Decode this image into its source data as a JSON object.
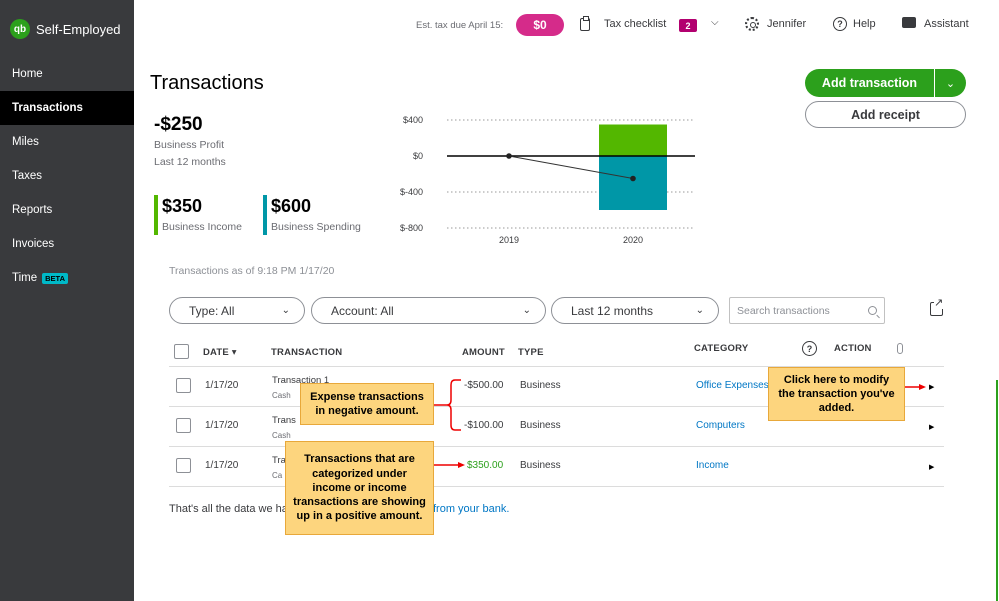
{
  "app": {
    "name": "Self-Employed",
    "logo_text": "qb"
  },
  "sidebar": {
    "items": [
      {
        "label": "Home"
      },
      {
        "label": "Transactions",
        "active": true
      },
      {
        "label": "Miles"
      },
      {
        "label": "Taxes"
      },
      {
        "label": "Reports"
      },
      {
        "label": "Invoices"
      },
      {
        "label": "Time",
        "badge": "BETA"
      }
    ]
  },
  "topbar": {
    "est_tax_label": "Est. tax due April 15:",
    "est_tax_value": "$0",
    "checklist_label": "Tax checklist",
    "checklist_count": "2",
    "user": "Jennifer",
    "help": "Help",
    "assistant": "Assistant"
  },
  "page": {
    "title": "Transactions",
    "add_transaction": "Add transaction",
    "add_receipt": "Add receipt"
  },
  "summary": {
    "profit_value": "-$250",
    "profit_label": "Business Profit",
    "period": "Last 12 months",
    "income_value": "$350",
    "income_label": "Business Income",
    "spending_value": "$600",
    "spending_label": "Business Spending"
  },
  "chart_data": {
    "type": "bar",
    "categories": [
      "2019",
      "2020"
    ],
    "series": [
      {
        "values": [
          0,
          350
        ],
        "color": "#53b700"
      },
      {
        "values": [
          0,
          -600
        ],
        "color": "#0097a7"
      }
    ],
    "profit_line": [
      0,
      -250
    ],
    "y_ticks": [
      "$400",
      "$0",
      "$-400",
      "$-800"
    ],
    "ylim": [
      -800,
      400
    ],
    "grid": true
  },
  "as_of": "Transactions as of 9:18 PM 1/17/20",
  "filters": {
    "type": "Type: All",
    "account": "Account: All",
    "period": "Last 12 months",
    "search_placeholder": "Search transactions"
  },
  "table": {
    "headers": {
      "date": "DATE ▾",
      "transaction": "TRANSACTION",
      "amount": "AMOUNT",
      "type": "TYPE",
      "category": "CATEGORY",
      "action": "ACTION"
    },
    "rows": [
      {
        "date": "1/17/20",
        "name": "Transaction 1",
        "account": "Cash",
        "amount": "-$500.00",
        "type": "Business",
        "category": "Office Expenses"
      },
      {
        "date": "1/17/20",
        "name": "Trans",
        "account": "Cash",
        "amount": "-$100.00",
        "type": "Business",
        "category": "Computers"
      },
      {
        "date": "1/17/20",
        "name": "Tra",
        "account": "Ca",
        "amount": "$350.00",
        "type": "Business",
        "category": "Income"
      }
    ]
  },
  "footer": {
    "text": "That's all the data we ha",
    "link": "from your bank."
  },
  "callouts": {
    "expense": "Expense transactions in negative amount.",
    "income": "Transactions that are categorized under income or income transactions are showing up in a positive amount.",
    "modify": "Click here to modify the transaction you've added."
  }
}
